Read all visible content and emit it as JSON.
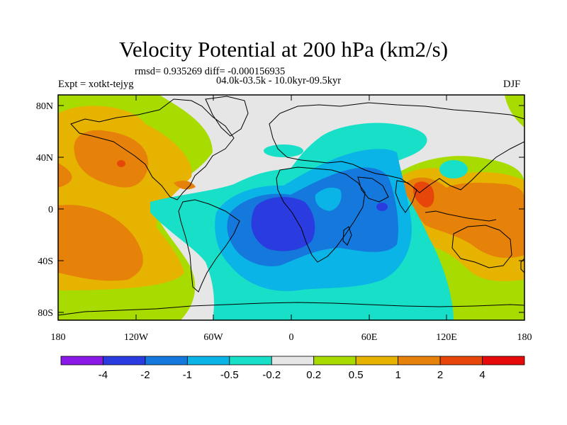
{
  "title": "Velocity Potential at 200 hPa (km2/s)",
  "rmsd_line": "rmsd= 0.935269 diff= -0.000156935",
  "expt": "Expt = xotkt-tejyg",
  "period": "04.0k-03.5k - 10.0kyr-09.5kyr",
  "season": "DJF",
  "axes": {
    "lat_ticks": [
      "80N",
      "40N",
      "0",
      "40S",
      "80S"
    ],
    "lon_ticks": [
      "180",
      "120W",
      "60W",
      "0",
      "60E",
      "120E",
      "180"
    ]
  },
  "colorbar": {
    "colors": [
      "#8a18e6",
      "#2a3ce0",
      "#1478dc",
      "#0ab4e6",
      "#18e0c8",
      "#e6e6e6",
      "#a8dc00",
      "#e6b400",
      "#e6820a",
      "#e6460a",
      "#e60a0a"
    ],
    "labels": [
      "-4",
      "-2",
      "-1",
      "-0.5",
      "-0.2",
      "0.2",
      "0.5",
      "1",
      "2",
      "4"
    ]
  }
}
